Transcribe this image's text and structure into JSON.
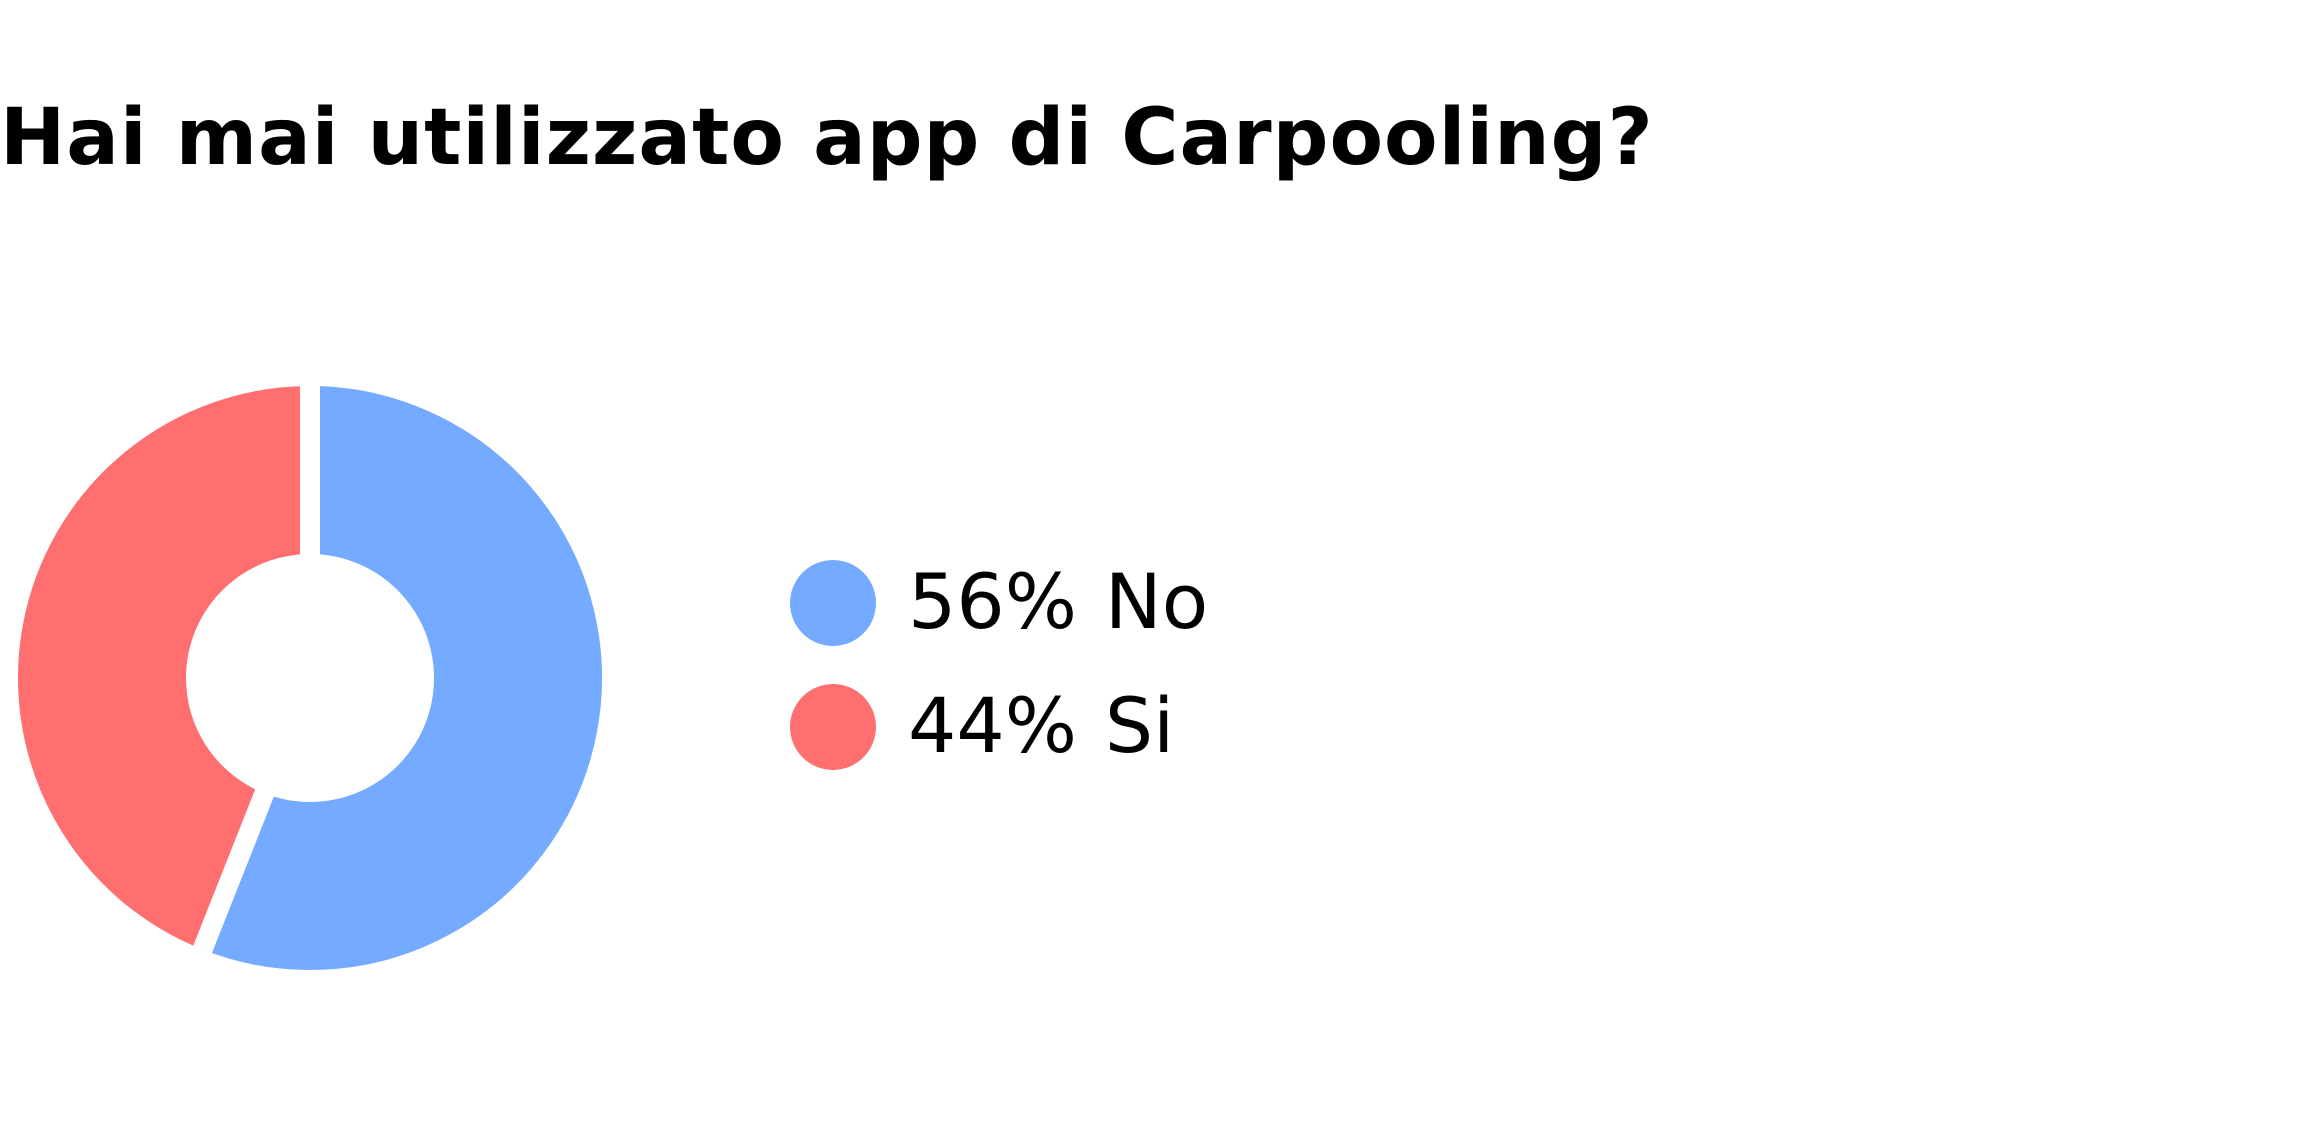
{
  "chart_data": {
    "type": "pie",
    "title": "Hai mai utilizzato app di Carpooling?",
    "categories": [
      "No",
      "Si"
    ],
    "values": [
      56,
      44
    ],
    "value_labels": [
      "56%",
      "44%"
    ],
    "colors": [
      "#74AAFF",
      "#FF6F6F"
    ],
    "donut": true,
    "legend_position": "right"
  }
}
